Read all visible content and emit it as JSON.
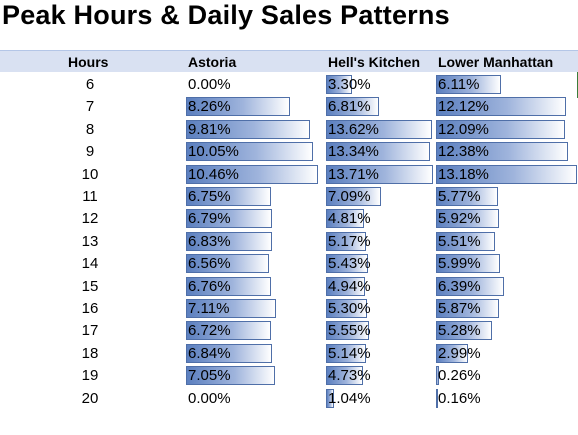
{
  "title": "Peak Hours & Daily Sales Patterns",
  "headers": [
    "Hours",
    "Astoria",
    "Hell's Kitchen",
    "Lower Manhattan"
  ],
  "colors": {
    "bar_dark": "#5b7fbf",
    "bar_border": "#4f6fa8",
    "header_bg": "#d9e1f2"
  },
  "rows": [
    {
      "hour": "6",
      "astoria": "0.00%",
      "hells": "3.30%",
      "lower": "6.11%"
    },
    {
      "hour": "7",
      "astoria": "8.26%",
      "hells": "6.81%",
      "lower": "12.12%"
    },
    {
      "hour": "8",
      "astoria": "9.81%",
      "hells": "13.62%",
      "lower": "12.09%"
    },
    {
      "hour": "9",
      "astoria": "10.05%",
      "hells": "13.34%",
      "lower": "12.38%"
    },
    {
      "hour": "10",
      "astoria": "10.46%",
      "hells": "13.71%",
      "lower": "13.18%"
    },
    {
      "hour": "11",
      "astoria": "6.75%",
      "hells": "7.09%",
      "lower": "5.77%"
    },
    {
      "hour": "12",
      "astoria": "6.79%",
      "hells": "4.81%",
      "lower": "5.92%"
    },
    {
      "hour": "13",
      "astoria": "6.83%",
      "hells": "5.17%",
      "lower": "5.51%"
    },
    {
      "hour": "14",
      "astoria": "6.56%",
      "hells": "5.43%",
      "lower": "5.99%"
    },
    {
      "hour": "15",
      "astoria": "6.76%",
      "hells": "4.94%",
      "lower": "6.39%"
    },
    {
      "hour": "16",
      "astoria": "7.11%",
      "hells": "5.30%",
      "lower": "5.87%"
    },
    {
      "hour": "17",
      "astoria": "6.72%",
      "hells": "5.55%",
      "lower": "5.28%"
    },
    {
      "hour": "18",
      "astoria": "6.84%",
      "hells": "5.14%",
      "lower": "2.99%"
    },
    {
      "hour": "19",
      "astoria": "7.05%",
      "hells": "4.73%",
      "lower": "0.26%"
    },
    {
      "hour": "20",
      "astoria": "0.00%",
      "hells": "1.04%",
      "lower": "0.16%"
    }
  ]
}
